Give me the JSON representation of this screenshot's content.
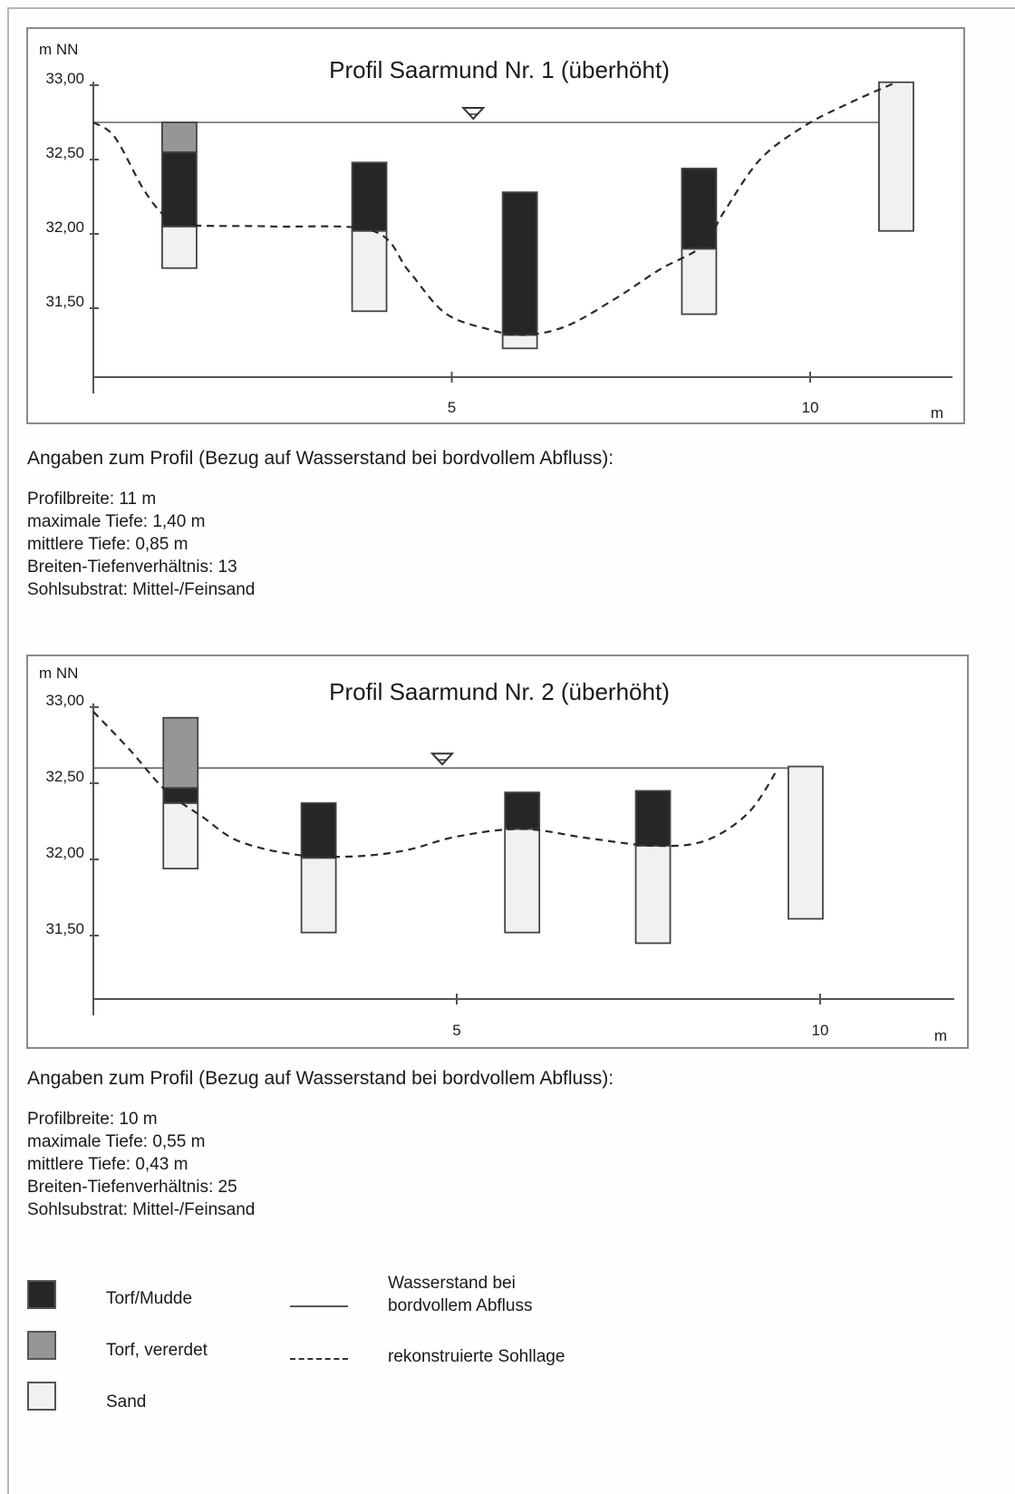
{
  "chart_data": [
    {
      "type": "profile",
      "title": "Profil Saarmund Nr. 1 (überhöht)",
      "ylabel": "m NN",
      "xlabel": "m",
      "yticks": [
        "33,00",
        "32,50",
        "32,00",
        "31,50"
      ],
      "xticks": [
        "5",
        "10"
      ],
      "ylim": [
        31.1,
        33.0
      ],
      "xlim": [
        0,
        12
      ],
      "water_level": 32.75,
      "water_marker_x": 5.3,
      "cores": [
        {
          "x": 1.2,
          "layers": [
            {
              "material": "sand",
              "bottom": 31.77,
              "top": 32.05
            },
            {
              "material": "torf_mudde",
              "bottom": 32.05,
              "top": 32.55
            },
            {
              "material": "torf_vererdet",
              "bottom": 32.55,
              "top": 32.75
            }
          ]
        },
        {
          "x": 3.85,
          "layers": [
            {
              "material": "sand",
              "bottom": 31.48,
              "top": 32.02
            },
            {
              "material": "torf_mudde",
              "bottom": 32.02,
              "top": 32.48
            }
          ]
        },
        {
          "x": 5.95,
          "layers": [
            {
              "material": "sand",
              "bottom": 31.23,
              "top": 31.32
            },
            {
              "material": "torf_mudde",
              "bottom": 31.32,
              "top": 32.28
            }
          ]
        },
        {
          "x": 8.45,
          "layers": [
            {
              "material": "sand",
              "bottom": 31.46,
              "top": 31.9
            },
            {
              "material": "torf_mudde",
              "bottom": 31.9,
              "top": 32.44
            }
          ]
        },
        {
          "x": 11.2,
          "layers": [
            {
              "material": "sand",
              "bottom": 32.02,
              "top": 33.02
            }
          ]
        }
      ],
      "sohllage": [
        [
          0,
          32.75
        ],
        [
          0.3,
          32.65
        ],
        [
          0.7,
          32.3
        ],
        [
          1.0,
          32.12
        ],
        [
          1.3,
          32.06
        ],
        [
          2.5,
          32.05
        ],
        [
          3.9,
          32.02
        ],
        [
          4.4,
          31.75
        ],
        [
          4.9,
          31.47
        ],
        [
          5.5,
          31.36
        ],
        [
          6.0,
          31.32
        ],
        [
          6.6,
          31.38
        ],
        [
          7.3,
          31.57
        ],
        [
          7.9,
          31.76
        ],
        [
          8.5,
          31.92
        ],
        [
          8.8,
          32.15
        ],
        [
          9.3,
          32.5
        ],
        [
          9.9,
          32.72
        ],
        [
          10.5,
          32.87
        ],
        [
          11.2,
          33.02
        ]
      ]
    },
    {
      "type": "profile",
      "title": "Profil Saarmund Nr. 2 (überhöht)",
      "ylabel": "m NN",
      "xlabel": "m",
      "yticks": [
        "33,00",
        "32,50",
        "32,00",
        "31,50"
      ],
      "xticks": [
        "5",
        "10"
      ],
      "ylim": [
        31.1,
        33.0
      ],
      "xlim": [
        0,
        12
      ],
      "water_level": 32.6,
      "water_marker_x": 4.8,
      "cores": [
        {
          "x": 1.2,
          "layers": [
            {
              "material": "sand",
              "bottom": 31.94,
              "top": 32.37
            },
            {
              "material": "torf_mudde",
              "bottom": 32.37,
              "top": 32.47
            },
            {
              "material": "torf_vererdet",
              "bottom": 32.47,
              "top": 32.93
            }
          ]
        },
        {
          "x": 3.1,
          "layers": [
            {
              "material": "sand",
              "bottom": 31.52,
              "top": 32.01
            },
            {
              "material": "torf_mudde",
              "bottom": 32.01,
              "top": 32.37
            }
          ]
        },
        {
          "x": 5.9,
          "layers": [
            {
              "material": "sand",
              "bottom": 31.52,
              "top": 32.2
            },
            {
              "material": "torf_mudde",
              "bottom": 32.2,
              "top": 32.44
            }
          ]
        },
        {
          "x": 7.7,
          "layers": [
            {
              "material": "sand",
              "bottom": 31.45,
              "top": 32.09
            },
            {
              "material": "torf_mudde",
              "bottom": 32.09,
              "top": 32.45
            }
          ]
        },
        {
          "x": 9.8,
          "layers": [
            {
              "material": "sand",
              "bottom": 31.61,
              "top": 32.61
            }
          ]
        }
      ],
      "sohllage": [
        [
          0,
          32.97
        ],
        [
          0.5,
          32.72
        ],
        [
          1.0,
          32.45
        ],
        [
          1.5,
          32.28
        ],
        [
          2.0,
          32.12
        ],
        [
          2.8,
          32.03
        ],
        [
          3.6,
          32.02
        ],
        [
          4.3,
          32.06
        ],
        [
          5.0,
          32.15
        ],
        [
          5.9,
          32.2
        ],
        [
          6.8,
          32.14
        ],
        [
          7.7,
          32.09
        ],
        [
          8.4,
          32.12
        ],
        [
          9.0,
          32.3
        ],
        [
          9.4,
          32.58
        ]
      ]
    }
  ],
  "profile1_info": {
    "heading": "Angaben zum Profil (Bezug auf Wasserstand bei bordvollem Abfluss):",
    "lines": [
      "Profilbreite: 11 m",
      "maximale Tiefe: 1,40 m",
      "mittlere Tiefe: 0,85 m",
      "Breiten-Tiefenverhältnis: 13",
      "Sohlsubstrat: Mittel-/Feinsand"
    ]
  },
  "profile2_info": {
    "heading": "Angaben zum Profil (Bezug auf Wasserstand bei bordvollem Abfluss):",
    "lines": [
      "Profilbreite: 10 m",
      "maximale Tiefe: 0,55 m",
      "mittlere Tiefe: 0,43 m",
      "Breiten-Tiefenverhältnis: 25",
      "Sohlsubstrat: Mittel-/Feinsand"
    ]
  },
  "legend": {
    "torf_mudde": "Torf/Mudde",
    "torf_vererdet": "Torf, vererdet",
    "sand": "Sand",
    "water_line_1": "Wasserstand bei",
    "water_line_2": "bordvollem Abfluss",
    "sohllage": "rekonstruierte Sohllage"
  },
  "colors": {
    "torf_mudde": "#262626",
    "torf_vererdet": "#969696",
    "sand": "#f1f1f1",
    "axis": "#555555"
  }
}
